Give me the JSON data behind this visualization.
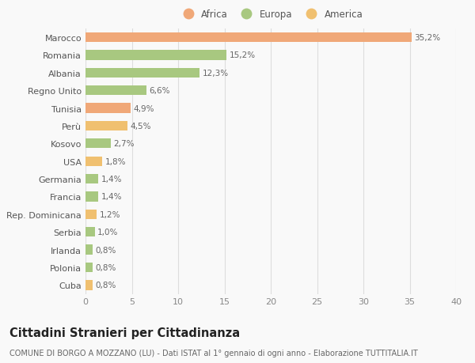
{
  "categories": [
    "Cuba",
    "Polonia",
    "Irlanda",
    "Serbia",
    "Rep. Dominicana",
    "Francia",
    "Germania",
    "USA",
    "Kosovo",
    "Perù",
    "Tunisia",
    "Regno Unito",
    "Albania",
    "Romania",
    "Marocco"
  ],
  "values": [
    0.8,
    0.8,
    0.8,
    1.0,
    1.2,
    1.4,
    1.4,
    1.8,
    2.7,
    4.5,
    4.9,
    6.6,
    12.3,
    15.2,
    35.2
  ],
  "labels": [
    "0,8%",
    "0,8%",
    "0,8%",
    "1,0%",
    "1,2%",
    "1,4%",
    "1,4%",
    "1,8%",
    "2,7%",
    "4,5%",
    "4,9%",
    "6,6%",
    "12,3%",
    "15,2%",
    "35,2%"
  ],
  "colors": [
    "#f0c070",
    "#a8c880",
    "#a8c880",
    "#a8c880",
    "#f0c070",
    "#a8c880",
    "#a8c880",
    "#f0c070",
    "#a8c880",
    "#f0c070",
    "#f0a878",
    "#a8c880",
    "#a8c880",
    "#a8c880",
    "#f0a878"
  ],
  "legend": [
    {
      "label": "Africa",
      "color": "#f0a878"
    },
    {
      "label": "Europa",
      "color": "#a8c880"
    },
    {
      "label": "America",
      "color": "#f0c070"
    }
  ],
  "title": "Cittadini Stranieri per Cittadinanza",
  "subtitle": "COMUNE DI BORGO A MOZZANO (LU) - Dati ISTAT al 1° gennaio di ogni anno - Elaborazione TUTTITALIA.IT",
  "xlim": [
    0,
    40
  ],
  "xticks": [
    0,
    5,
    10,
    15,
    20,
    25,
    30,
    35,
    40
  ],
  "background_color": "#f9f9f9",
  "bar_height": 0.55,
  "label_fontsize": 7.5,
  "title_fontsize": 10.5,
  "subtitle_fontsize": 7.0,
  "tick_fontsize": 8.0,
  "legend_fontsize": 8.5
}
